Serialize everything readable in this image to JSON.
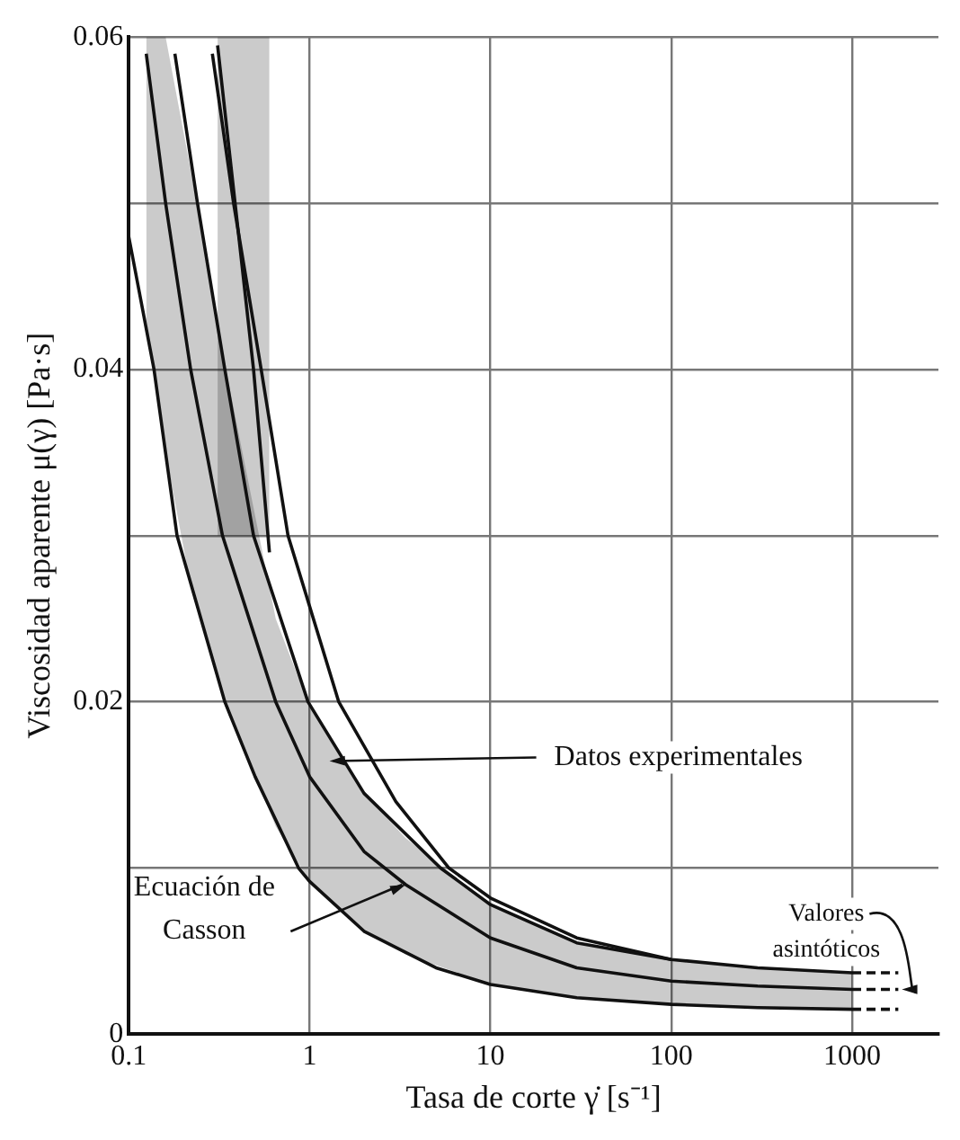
{
  "chart_data": {
    "type": "line",
    "xlabel": "Tasa de corte γ̇ [s⁻¹]",
    "ylabel": "Viscosidad aparente μ(γ) [Pa·s]",
    "log": "x",
    "grid": true,
    "legend": false,
    "marker": "none",
    "line_style": "solid",
    "xlim": [
      0.1,
      3000
    ],
    "xticks": [
      0.1,
      1,
      10,
      100,
      1000
    ],
    "ylim": [
      0,
      0.06
    ],
    "yticks": [
      0,
      {
        "value": 0.01,
        "label": null
      },
      0.02,
      {
        "value": 0.03,
        "label": null
      },
      0.04,
      {
        "value": 0.05,
        "label": null
      },
      0.06
    ],
    "series": [
      {
        "color": "#111111",
        "x": [
          0.1,
          0.138,
          0.185,
          0.34,
          0.5,
          0.87,
          1,
          2,
          5,
          10,
          30,
          100,
          300,
          1000
        ],
        "values": [
          0.048,
          0.04,
          0.03,
          0.02,
          0.0155,
          0.01,
          0.0092,
          0.0062,
          0.004,
          0.003,
          0.0022,
          0.0018,
          0.0016,
          0.0015
        ]
      },
      {
        "color": "#111111",
        "x": [
          0.125,
          0.16,
          0.22,
          0.33,
          0.65,
          1,
          2,
          3.4,
          10,
          30,
          100,
          300,
          1000
        ],
        "values": [
          0.059,
          0.05,
          0.04,
          0.03,
          0.02,
          0.0155,
          0.011,
          0.009,
          0.0058,
          0.004,
          0.0032,
          0.0029,
          0.0027
        ],
        "lower": [
          0.043,
          0.035,
          0.027,
          0.0205,
          0.0125,
          0.0092,
          0.0062,
          0.0048,
          0.003,
          0.0022,
          0.0018,
          0.0016,
          0.0015
        ],
        "upper": [
          0.06,
          0.06,
          0.052,
          0.041,
          0.025,
          0.0197,
          0.0145,
          0.0118,
          0.0078,
          0.0055,
          0.0045,
          0.004,
          0.0037
        ]
      },
      {
        "color": "#111111",
        "x": [
          0.18,
          0.24,
          0.34,
          0.49,
          0.98,
          2,
          5.3,
          10,
          30,
          100,
          300,
          1000
        ],
        "values": [
          0.059,
          0.05,
          0.04,
          0.03,
          0.02,
          0.0145,
          0.01,
          0.0078,
          0.0055,
          0.0045,
          0.004,
          0.0037
        ]
      },
      {
        "color": "#111111",
        "x": [
          0.29,
          0.38,
          0.54,
          0.76,
          1.45,
          3,
          5.9,
          10,
          30,
          100
        ],
        "values": [
          0.059,
          0.05,
          0.04,
          0.03,
          0.02,
          0.014,
          0.01,
          0.0082,
          0.0058,
          0.0045
        ]
      },
      {
        "color": "#111111",
        "x": [
          0.31,
          0.49,
          0.6
        ],
        "values": [
          0.0595,
          0.04,
          0.029
        ],
        "lower": [
          0.03,
          0.03,
          0.03
        ],
        "upper": [
          0.06,
          0.06,
          0.06
        ]
      },
      {
        "color": "#111111",
        "line_style": "dashed",
        "x": [
          1000,
          1800
        ],
        "values": [
          0.0037,
          0.0037
        ]
      },
      {
        "color": "#111111",
        "line_style": "dashed",
        "x": [
          1000,
          1800
        ],
        "values": [
          0.0027,
          0.0027
        ]
      },
      {
        "color": "#111111",
        "line_style": "dashed",
        "x": [
          1000,
          1800
        ],
        "values": [
          0.0015,
          0.0015
        ]
      }
    ],
    "annotations": [
      "Datos experimentales",
      {
        "text": "Ecuación de Casson",
        "x": 3.4,
        "y": 0.009
      },
      {
        "text": "Valores asintóticos",
        "x": 1800,
        "y": 0.0027
      }
    ]
  }
}
